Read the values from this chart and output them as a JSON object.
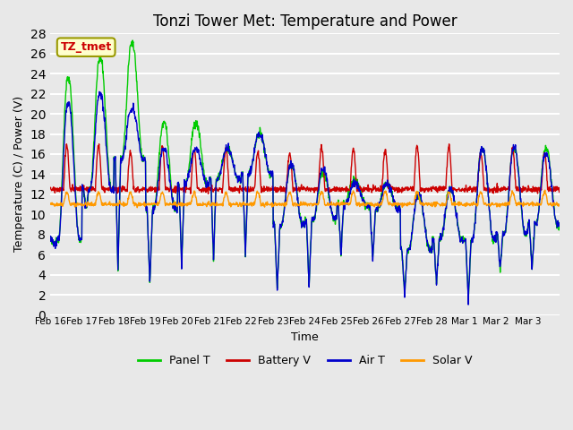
{
  "title": "Tonzi Tower Met: Temperature and Power",
  "xlabel": "Time",
  "ylabel": "Temperature (C) / Power (V)",
  "ylim": [
    0,
    28
  ],
  "yticks": [
    0,
    2,
    4,
    6,
    8,
    10,
    12,
    14,
    16,
    18,
    20,
    22,
    24,
    26,
    28
  ],
  "xtick_labels": [
    "Feb 16",
    "Feb 17",
    "Feb 18",
    "Feb 19",
    "Feb 20",
    "Feb 21",
    "Feb 22",
    "Feb 23",
    "Feb 24",
    "Feb 25",
    "Feb 26",
    "Feb 27",
    "Feb 28",
    "Mar 1",
    "Mar 2",
    "Mar 3"
  ],
  "colors": {
    "panel_t": "#00cc00",
    "battery_v": "#cc0000",
    "air_t": "#0000cc",
    "solar_v": "#ff9900"
  },
  "bg_color": "#e8e8e8",
  "grid_color": "#ffffff",
  "annotation_text": "TZ_tmet",
  "annotation_color": "#cc0000",
  "annotation_bg": "#ffffcc",
  "legend_labels": [
    "Panel T",
    "Battery V",
    "Air T",
    "Solar V"
  ]
}
